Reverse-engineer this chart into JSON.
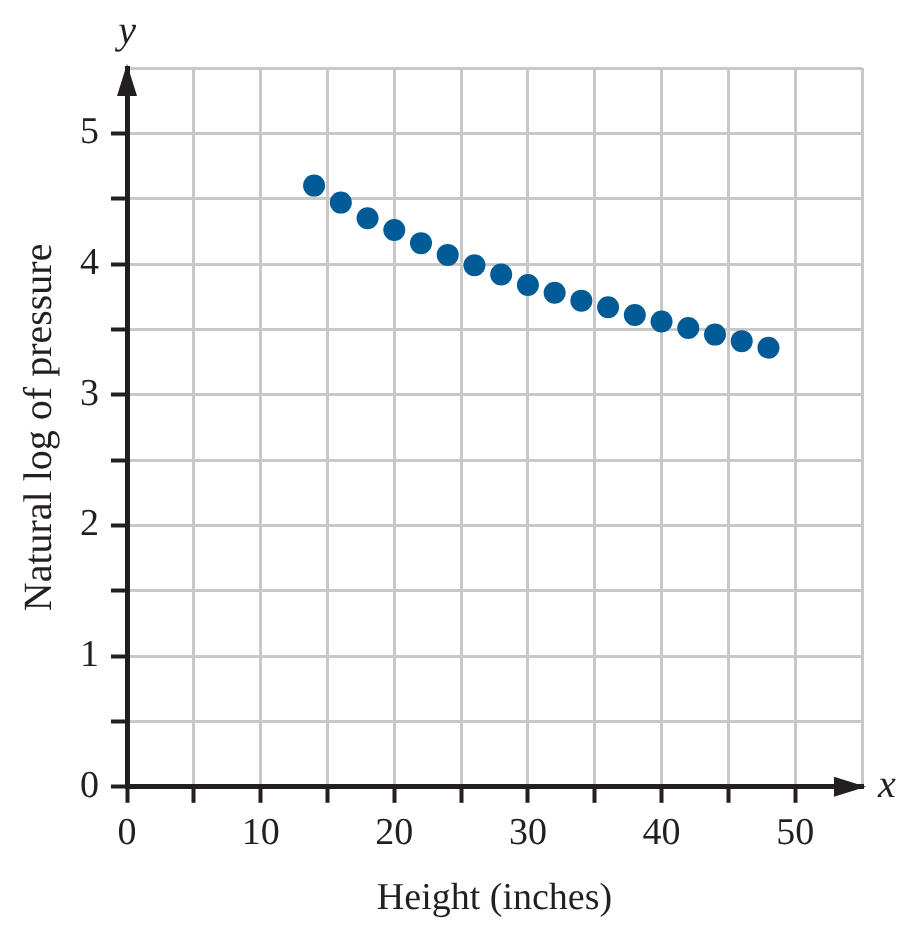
{
  "chart_data": {
    "type": "scatter",
    "xlabel": "Height (inches)",
    "ylabel": "Natural log of pressure",
    "annotations": [
      "x",
      "y"
    ],
    "x": [
      14,
      16,
      18,
      20,
      22,
      24,
      26,
      28,
      30,
      32,
      34,
      36,
      38,
      40,
      42,
      44,
      46,
      48
    ],
    "series": [
      {
        "color": "#005b96",
        "values": [
          4.6,
          4.47,
          4.35,
          4.26,
          4.16,
          4.07,
          3.99,
          3.92,
          3.84,
          3.78,
          3.72,
          3.67,
          3.61,
          3.56,
          3.51,
          3.46,
          3.41,
          3.36
        ]
      }
    ],
    "xlim": [
      0,
      55
    ],
    "xticks": [
      0,
      {
        "value": 5,
        "label": null
      },
      10,
      {
        "value": 15,
        "label": null
      },
      20,
      {
        "value": 25,
        "label": null
      },
      30,
      {
        "value": 35,
        "label": null
      },
      40,
      {
        "value": 45,
        "label": null
      },
      50
    ],
    "ylim": [
      0,
      5.5
    ],
    "yticks": [
      0,
      {
        "value": 0.5,
        "label": null
      },
      1,
      {
        "value": 1.5,
        "label": null
      },
      2,
      {
        "value": 2.5,
        "label": null
      },
      3,
      {
        "value": 3.5,
        "label": null
      },
      4,
      {
        "value": 4.5,
        "label": null
      },
      5
    ],
    "grid": true,
    "legend": false,
    "marker": "circle"
  }
}
